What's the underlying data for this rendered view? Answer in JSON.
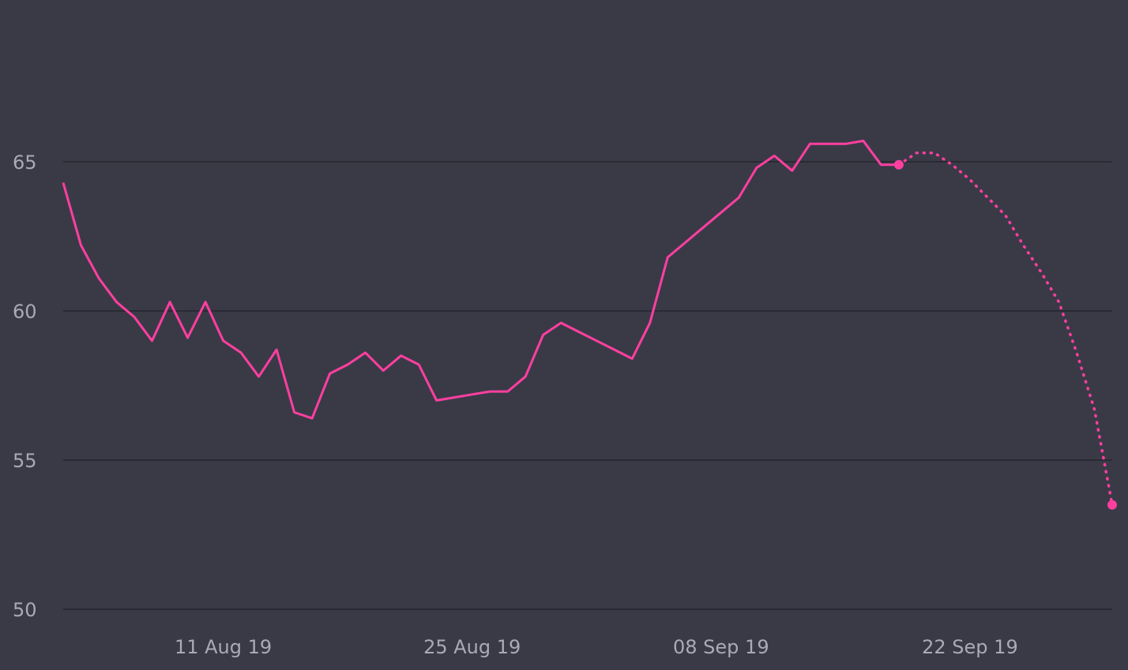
{
  "colors": {
    "background": "#3a3a47",
    "grid": "#25252e",
    "tick_text": "#a9a9b8",
    "series": "#ff3fa0"
  },
  "chart_data": {
    "type": "line",
    "title": "",
    "xlabel": "",
    "ylabel": "",
    "grid": true,
    "legend": "none",
    "ylim": [
      50,
      70
    ],
    "xlim": [
      "2019-08-02",
      "2019-09-30"
    ],
    "y_ticks": [
      "50",
      "55",
      "60",
      "65"
    ],
    "x_ticks": [
      {
        "date": "2019-08-11",
        "label": "11 Aug 19"
      },
      {
        "date": "2019-08-25",
        "label": "25 Aug 19"
      },
      {
        "date": "2019-09-08",
        "label": "08 Sep 19"
      },
      {
        "date": "2019-09-22",
        "label": "22 Sep 19"
      }
    ],
    "series": [
      {
        "style": "solid",
        "x": [
          "2019-08-02",
          "2019-08-03",
          "2019-08-04",
          "2019-08-05",
          "2019-08-06",
          "2019-08-07",
          "2019-08-08",
          "2019-08-09",
          "2019-08-10",
          "2019-08-11",
          "2019-08-12",
          "2019-08-13",
          "2019-08-14",
          "2019-08-15",
          "2019-08-16",
          "2019-08-17",
          "2019-08-18",
          "2019-08-19",
          "2019-08-20",
          "2019-08-21",
          "2019-08-22",
          "2019-08-23",
          "2019-08-24",
          "2019-08-25",
          "2019-08-26",
          "2019-08-27",
          "2019-08-28",
          "2019-08-29",
          "2019-08-30",
          "2019-08-31",
          "2019-09-01",
          "2019-09-02",
          "2019-09-03",
          "2019-09-04",
          "2019-09-05",
          "2019-09-06",
          "2019-09-07",
          "2019-09-08",
          "2019-09-09",
          "2019-09-10",
          "2019-09-11",
          "2019-09-12",
          "2019-09-13",
          "2019-09-14",
          "2019-09-15",
          "2019-09-16",
          "2019-09-17",
          "2019-09-18"
        ],
        "values": [
          64.3,
          62.2,
          61.1,
          60.3,
          59.8,
          59.0,
          60.3,
          59.1,
          60.3,
          59.0,
          58.6,
          57.8,
          58.7,
          56.6,
          56.4,
          57.9,
          58.2,
          58.6,
          58.0,
          58.5,
          58.2,
          57.0,
          57.1,
          57.2,
          57.3,
          57.3,
          57.8,
          59.2,
          59.6,
          59.3,
          59.0,
          58.7,
          58.4,
          59.6,
          61.8,
          62.3,
          62.8,
          63.3,
          63.8,
          64.8,
          65.2,
          64.7,
          65.6,
          65.6,
          65.6,
          65.7,
          64.9,
          64.9
        ],
        "end_marker": true
      },
      {
        "style": "dotted",
        "x": [
          "2019-09-18",
          "2019-09-19",
          "2019-09-20",
          "2019-09-21",
          "2019-09-22",
          "2019-09-23",
          "2019-09-24",
          "2019-09-25",
          "2019-09-26",
          "2019-09-27",
          "2019-09-28",
          "2019-09-29",
          "2019-09-30"
        ],
        "values": [
          64.9,
          65.3,
          65.3,
          64.9,
          64.4,
          63.8,
          63.2,
          62.2,
          61.3,
          60.3,
          58.6,
          56.7,
          53.5
        ],
        "end_marker": true
      }
    ]
  }
}
